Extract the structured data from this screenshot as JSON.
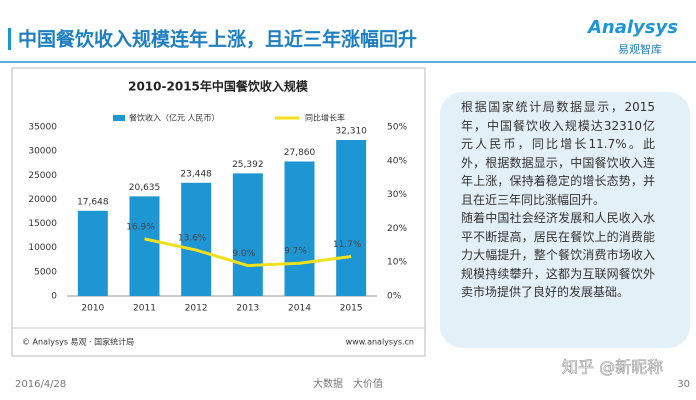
{
  "slide": {
    "title": "中国餐饮收入规模连年上涨，且近三年涨幅回升",
    "logo": {
      "name": "Analysys",
      "subtitle": "易观智库"
    },
    "paragraphs": [
      "根据国家统计局数据显示，2015年，中国餐饮收入规模达32310亿元人民币，同比增长11.7%。此外，根据数据显示，中国餐饮收入连年上涨，保持着稳定的增长态势，并且在近三年同比涨幅回升。",
      "随着中国社会经济发展和人民收入水平不断提高，居民在餐饮上的消费能力大幅提升，整个餐饮消费市场收入规模持续攀升，这都为互联网餐饮外卖市场提供了良好的发展基础。"
    ],
    "footer": {
      "date": "2016/4/28",
      "slogan": "大数据　大价值",
      "page": "30"
    },
    "watermark": "知乎 @新昵称"
  },
  "chart_data": {
    "type": "bar",
    "title": "2010-2015年中国餐饮收入规模",
    "categories": [
      "2010",
      "2011",
      "2012",
      "2013",
      "2014",
      "2015"
    ],
    "series": [
      {
        "name": "餐饮收入（亿元 人民币）",
        "color": "#1e96d4",
        "values": [
          17648,
          20635,
          23448,
          25392,
          27860,
          32310
        ],
        "value_labels": [
          "17,648",
          "20,635",
          "23,448",
          "25,392",
          "27,860",
          "32,310"
        ]
      },
      {
        "name": "同比增长率",
        "type": "line",
        "axis": "y2",
        "color": "#f2e01c",
        "values": [
          null,
          16.9,
          13.6,
          9.0,
          9.7,
          11.7
        ],
        "value_labels": [
          null,
          "16.9%",
          "13.6%",
          "9.0%",
          "9.7%",
          "11.7%"
        ]
      }
    ],
    "ylim": [
      0,
      35000
    ],
    "yticks": [
      0,
      5000,
      10000,
      15000,
      20000,
      25000,
      30000,
      35000
    ],
    "y2lim": [
      0,
      50
    ],
    "y2ticks": [
      {
        "value": 0,
        "label": "0%"
      },
      {
        "value": 10,
        "label": "10%"
      },
      {
        "value": 20,
        "label": "20%"
      },
      {
        "value": 30,
        "label": "30%"
      },
      {
        "value": 40,
        "label": "40%"
      },
      {
        "value": 50,
        "label": "50%"
      }
    ],
    "grid": false,
    "legend": "top",
    "source": "© Analysys 易观 · 国家统计局",
    "website": "www.analysys.cn"
  }
}
